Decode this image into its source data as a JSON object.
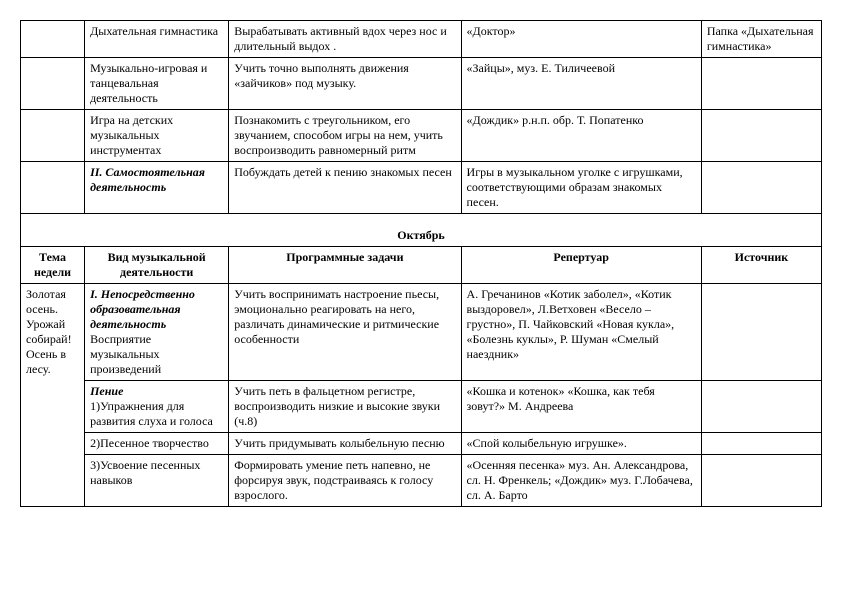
{
  "table1": {
    "rows": [
      {
        "c1": "",
        "c2": "Дыхательная гимнастика",
        "c3": "Вырабатывать активный вдох через нос и длительный выдох .",
        "c4": "«Доктор»",
        "c5": "Папка «Дыхательная гимнастика»"
      },
      {
        "c1": "",
        "c2": "Музыкально-игровая и танцевальная деятельность",
        "c3": "Учить точно выполнять движения «зайчиков» под музыку.",
        "c4": "«Зайцы», муз. Е. Тиличеевой",
        "c5": ""
      },
      {
        "c1": "",
        "c2": "Игра на детских музыкальных инструментах",
        "c3": "Познакомить с треугольником, его звучанием, способом игры на нем, учить воспроизводить равномерный ритм",
        "c4": "«Дождик» р.н.п. обр. Т. Попатенко",
        "c5": ""
      },
      {
        "c1": "",
        "c2": "II. Самостоятельная деятельность",
        "c2_style": "bold italic",
        "c3": "Побуждать детей к пению знакомых песен",
        "c4": "Игры в музыкальном уголке с игрушками, соответствующими образам знакомых песен.",
        "c5": ""
      }
    ]
  },
  "month": "Октябрь",
  "headers": {
    "c1": "Тема недели",
    "c2": "Вид музыкальной деятельности",
    "c3": "Программные задачи",
    "c4": "Репертуар",
    "c5": "Источник"
  },
  "table2": {
    "theme": "Золотая осень. Урожай собирай! Осень в лесу.",
    "rows": [
      {
        "c2a": "I. Непосредственно образовательная деятельность",
        "c2a_style": "bold italic",
        "c2b": "Восприятие музыкальных произведений",
        "c3": "Учить воспринимать настроение пьесы, эмоционально реагировать на него, различать динамические и ритмические особенности",
        "c4": "А. Гречанинов «Котик заболел», «Котик выздоровел», Л.Ветховен «Весело – грустно», П. Чайковский «Новая кукла», «Болезнь куклы», Р. Шуман «Смелый наездник»",
        "c5": ""
      },
      {
        "c2a": "Пение",
        "c2a_style": "bold italic",
        "c2b": "1)Упражнения для развития слуха и голоса",
        "c3": "Учить петь в фальцетном регистре, воспроизводить низкие и высокие звуки (ч.8)",
        "c4": "«Кошка и котенок» «Кошка, как тебя зовут?» М. Андреева",
        "c5": ""
      },
      {
        "c2": "2)Песенное творчество",
        "c3": "Учить придумывать колыбельную песню",
        "c4": "«Спой колыбельную игрушке».",
        "c5": ""
      },
      {
        "c2": "3)Усвоение песенных навыков",
        "c3": "Формировать умение петь напевно, не форсируя звук, подстраиваясь к голосу взрослого.",
        "c4": "«Осенняя песенка» муз. Ан. Александрова, сл. Н. Френкель; «Дождик» муз. Г.Лобачева, сл. А. Барто",
        "c5": ""
      }
    ]
  }
}
